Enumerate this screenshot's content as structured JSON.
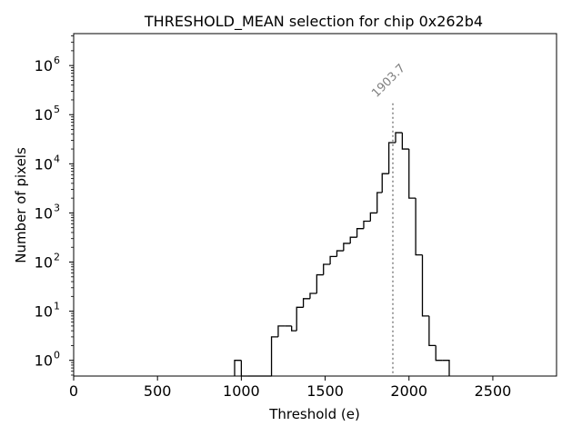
{
  "chart_data": {
    "type": "histogram",
    "title": "THRESHOLD_MEAN selection for chip 0x262b4",
    "xlabel": "Threshold (e)",
    "ylabel": "Number of pixels",
    "xlim": [
      0,
      2880
    ],
    "ylim_log10": [
      -0.32,
      6.65
    ],
    "yscale": "log",
    "x_ticks": [
      {
        "value": 0,
        "label": "0"
      },
      {
        "value": 500,
        "label": "500"
      },
      {
        "value": 1000,
        "label": "1000"
      },
      {
        "value": 1500,
        "label": "1500"
      },
      {
        "value": 2000,
        "label": "2000"
      },
      {
        "value": 2500,
        "label": "2500"
      }
    ],
    "y_ticks": [
      {
        "exponent": 0,
        "base": "10",
        "exp_label": "0"
      },
      {
        "exponent": 1,
        "base": "10",
        "exp_label": "1"
      },
      {
        "exponent": 2,
        "base": "10",
        "exp_label": "2"
      },
      {
        "exponent": 3,
        "base": "10",
        "exp_label": "3"
      },
      {
        "exponent": 4,
        "base": "10",
        "exp_label": "4"
      },
      {
        "exponent": 5,
        "base": "10",
        "exp_label": "5"
      },
      {
        "exponent": 6,
        "base": "10",
        "exp_label": "6"
      }
    ],
    "bin_width": 40,
    "bins": [
      {
        "x": 960,
        "count": 1
      },
      {
        "x": 1000,
        "count": 0
      },
      {
        "x": 1040,
        "count": 0
      },
      {
        "x": 1080,
        "count": 0
      },
      {
        "x": 1120,
        "count": 0
      },
      {
        "x": 1180,
        "count": 3
      },
      {
        "x": 1220,
        "count": 5
      },
      {
        "x": 1260,
        "count": 5
      },
      {
        "x": 1300,
        "count": 4
      },
      {
        "x": 1330,
        "count": 12
      },
      {
        "x": 1370,
        "count": 18
      },
      {
        "x": 1410,
        "count": 23
      },
      {
        "x": 1450,
        "count": 55
      },
      {
        "x": 1490,
        "count": 90
      },
      {
        "x": 1530,
        "count": 130
      },
      {
        "x": 1570,
        "count": 170
      },
      {
        "x": 1610,
        "count": 240
      },
      {
        "x": 1650,
        "count": 320
      },
      {
        "x": 1690,
        "count": 480
      },
      {
        "x": 1730,
        "count": 680
      },
      {
        "x": 1770,
        "count": 1000
      },
      {
        "x": 1810,
        "count": 2600
      },
      {
        "x": 1840,
        "count": 6300
      },
      {
        "x": 1880,
        "count": 27000
      },
      {
        "x": 1920,
        "count": 43000
      },
      {
        "x": 1960,
        "count": 20000
      },
      {
        "x": 2000,
        "count": 2000
      },
      {
        "x": 2040,
        "count": 140
      },
      {
        "x": 2080,
        "count": 8
      },
      {
        "x": 2120,
        "count": 2
      },
      {
        "x": 2160,
        "count": 1
      },
      {
        "x": 2200,
        "count": 1
      }
    ],
    "bin_edges_end": 2240,
    "vline": {
      "value": 1903.7,
      "label": "1903.7",
      "top_count": 170000,
      "color": "#808080"
    },
    "colors": {
      "step": "#000000",
      "axes": "#000000"
    }
  }
}
